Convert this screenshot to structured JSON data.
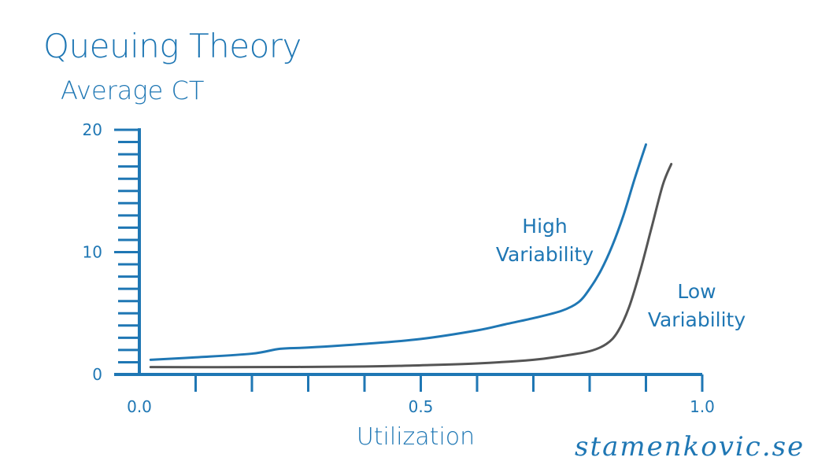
{
  "title": "Queuing Theory",
  "signature": "stamenkovic.se",
  "colors": {
    "axis": "#1f77b4",
    "high_variability": "#1f77b4",
    "low_variability": "#555555",
    "text": "#1f77b4"
  },
  "chart_data": {
    "type": "line",
    "title": "Queuing Theory",
    "ylabel": "Average CT",
    "xlabel": "Utilization",
    "xlim": [
      0.0,
      1.0
    ],
    "ylim": [
      0,
      20
    ],
    "x_ticks": [
      "0.0",
      "0.5",
      "1.0"
    ],
    "y_ticks": [
      "0",
      "10",
      "20"
    ],
    "grid": false,
    "legend": "none",
    "series": [
      {
        "name": "High Variability",
        "color": "#1f77b4",
        "x": [
          0.02,
          0.1,
          0.2,
          0.25,
          0.3,
          0.4,
          0.5,
          0.6,
          0.65,
          0.7,
          0.75,
          0.78,
          0.8,
          0.82,
          0.84,
          0.86,
          0.88,
          0.9
        ],
        "y": [
          1.2,
          1.4,
          1.7,
          2.1,
          2.2,
          2.5,
          2.9,
          3.6,
          4.1,
          4.6,
          5.2,
          5.9,
          7.0,
          8.5,
          10.5,
          13.0,
          16.0,
          18.8
        ]
      },
      {
        "name": "Low Variability",
        "color": "#555555",
        "x": [
          0.02,
          0.2,
          0.4,
          0.5,
          0.6,
          0.7,
          0.75,
          0.8,
          0.83,
          0.85,
          0.87,
          0.89,
          0.91,
          0.93,
          0.945
        ],
        "y": [
          0.6,
          0.6,
          0.65,
          0.75,
          0.9,
          1.2,
          1.5,
          1.9,
          2.5,
          3.5,
          5.5,
          8.5,
          12.0,
          15.5,
          17.2
        ]
      }
    ],
    "annotations": [
      {
        "lines": [
          "High",
          "Variability"
        ]
      },
      {
        "lines": [
          "Low",
          "Variability"
        ]
      }
    ]
  }
}
